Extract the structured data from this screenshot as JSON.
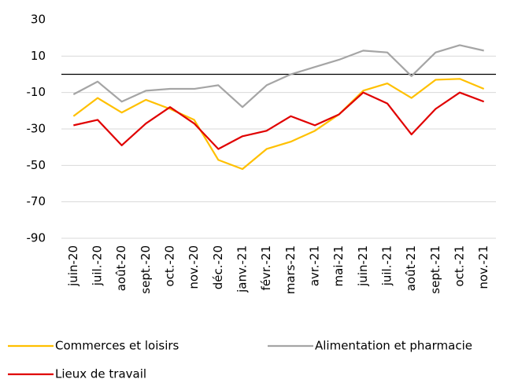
{
  "chart_data": {
    "type": "line",
    "categories": [
      "juin-20",
      "juil.-20",
      "août-20",
      "sept.-20",
      "oct.-20",
      "nov.-20",
      "déc.-20",
      "janv.-21",
      "févr.-21",
      "mars-21",
      "avr.-21",
      "mai-21",
      "juin-21",
      "juil.-21",
      "août-21",
      "sept.-21",
      "oct.-21",
      "nov.-21"
    ],
    "series": [
      {
        "name": "Commerces et loisirs",
        "color": "#ffc000",
        "values": [
          -23,
          -13,
          -21,
          -14,
          -19,
          -25,
          -47,
          -52,
          -41,
          -37,
          -31,
          -22,
          -9,
          -5,
          -13,
          -3,
          -2.5,
          -8
        ]
      },
      {
        "name": "Alimentation et pharmacie",
        "color": "#a5a5a5",
        "values": [
          -11,
          -4,
          -15,
          -9,
          -8,
          -8,
          -6,
          -18,
          -6,
          0,
          4,
          8,
          13,
          12,
          -1,
          12,
          16,
          13
        ]
      },
      {
        "name": "Lieux de travail",
        "color": "#e00000",
        "values": [
          -28,
          -25,
          -39,
          -27,
          -18,
          -27,
          -41,
          -34,
          -31,
          -23,
          -28,
          -22,
          -10,
          -16,
          -33,
          -19,
          -10,
          -15
        ]
      }
    ],
    "ylim": [
      -90,
      30
    ],
    "yticks": [
      -90,
      -70,
      -50,
      -30,
      -10,
      10,
      30
    ],
    "grid": true
  }
}
